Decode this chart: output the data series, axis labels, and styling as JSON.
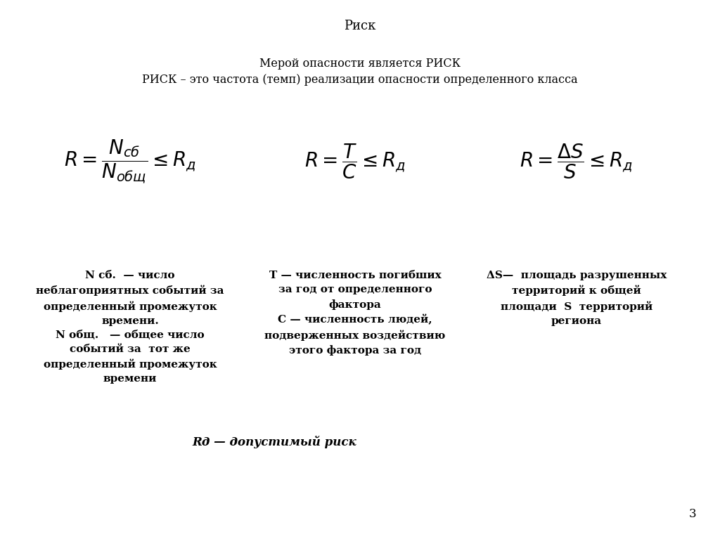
{
  "background_color": "#ffffff",
  "title": "Риск",
  "title_fontsize": 13,
  "subtitle1": "Мерой опасности является РИСК",
  "subtitle2": "РИСК – это частота (темп) реализации опасности определенного класса",
  "subtitle_fontsize": 11.5,
  "formula1": "$R = \\dfrac{N_{сб}}{N_{общ}} \\leq R_{д}$",
  "formula2": "$R = \\dfrac{T}{C} \\leq R_{д}$",
  "formula3": "$R = \\dfrac{\\Delta S}{S} \\leq R_{д}$",
  "formula_fontsize": 20,
  "desc1_bold1": "N сб.  — число",
  "desc1_bold2": "неблагоприятных событий за",
  "desc1_bold3": "определенный промежуток",
  "desc1_bold4": "времени.",
  "desc1_bold5": "N общ.   — общее число",
  "desc1_bold6": "событий за  тот же",
  "desc1_bold7": "определенный промежуток",
  "desc1_bold8": "времени",
  "desc2_bold1": "T — численность погибших",
  "desc2_bold2": "за год от определенного",
  "desc2_bold3": "фактора",
  "desc2_bold4": "C — численность людей,",
  "desc2_bold5": "подверженных воздействию",
  "desc2_bold6": "этого фактора за год",
  "desc3_bold1": "ΔS—  площадь разрушенных",
  "desc3_bold2": "территорий к общей",
  "desc3_bold3": "площади  S  территорий",
  "desc3_bold4": "региона",
  "footer": "Rд — допустимый риск",
  "page_number": "3",
  "desc_fontsize": 11,
  "footer_fontsize": 12
}
